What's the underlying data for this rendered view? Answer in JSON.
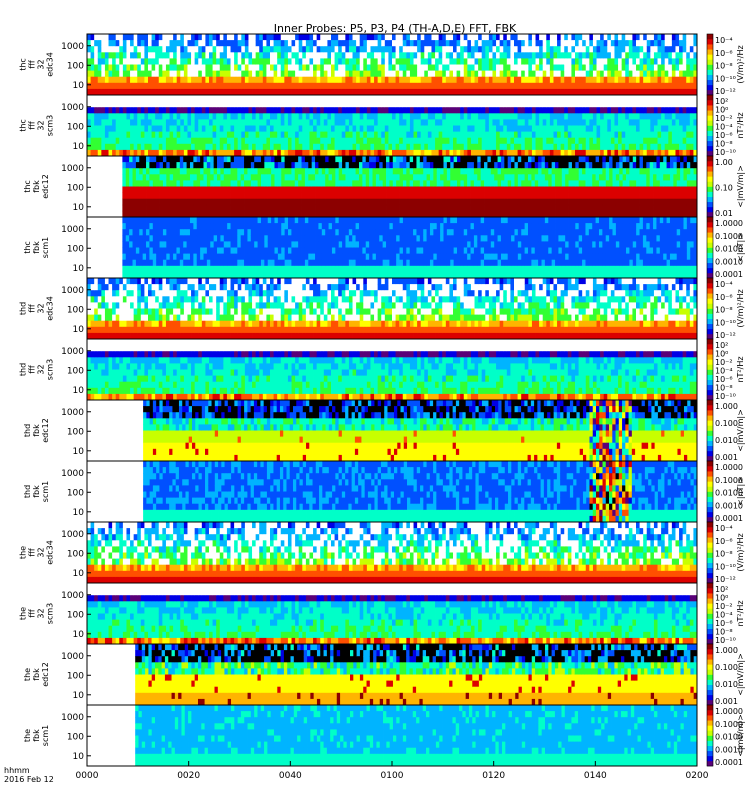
{
  "chart_data": {
    "type": "heatmap",
    "title": "Inner Probes: P5, P3, P4 (TH-A,D,E) FFT, FBK",
    "x_label_line1": "hhmm",
    "x_label_line2": "2016 Feb 12",
    "xticks": [
      "0000",
      "0020",
      "0040",
      "0100",
      "0120",
      "0140",
      "0200"
    ],
    "xlim": [
      "00:00",
      "02:00"
    ],
    "panels": [
      {
        "label": [
          "thc",
          "fff",
          "32",
          "edc34"
        ],
        "kind": "fff_e",
        "yticks": [
          "10",
          "100",
          "1000"
        ],
        "cb_ticks": [
          "10⁻⁴",
          "10⁻⁶",
          "10⁻⁸",
          "10⁻¹⁰",
          "10⁻¹²"
        ],
        "cb_label": "(V/m)²/Hz",
        "data_start": 0.0
      },
      {
        "label": [
          "thc",
          "fff",
          "32",
          "scm3"
        ],
        "kind": "fff_b",
        "yticks": [
          "10",
          "100",
          "1000"
        ],
        "cb_ticks": [
          "10²",
          "10⁰",
          "10⁻²",
          "10⁻⁴",
          "10⁻⁶",
          "10⁻⁸",
          "10⁻¹⁰"
        ],
        "cb_label": "nT²/Hz",
        "data_start": 0.0
      },
      {
        "label": [
          "thc",
          "fbk",
          "edc12"
        ],
        "kind": "fbk_e",
        "yticks": [
          "10",
          "100",
          "1000"
        ],
        "cb_ticks": [
          "1.00",
          "0.10",
          "0.01"
        ],
        "cb_label": "<|mV/m|>",
        "data_start": 0.058
      },
      {
        "label": [
          "thc",
          "fbk",
          "scm1"
        ],
        "kind": "fbk_b",
        "yticks": [
          "10",
          "100",
          "1000"
        ],
        "cb_ticks": [
          "1.0000",
          "0.1000",
          "0.0100",
          "0.0010",
          "0.0001"
        ],
        "cb_label": "<|nT|>",
        "data_start": 0.058
      },
      {
        "label": [
          "thd",
          "fff",
          "32",
          "edc34"
        ],
        "kind": "fff_e",
        "yticks": [
          "10",
          "100",
          "1000"
        ],
        "cb_ticks": [
          "10⁻⁴",
          "10⁻⁶",
          "10⁻⁸",
          "10⁻¹⁰",
          "10⁻¹²"
        ],
        "cb_label": "(V/m)²/Hz",
        "data_start": 0.0
      },
      {
        "label": [
          "thd",
          "fff",
          "32",
          "scm3"
        ],
        "kind": "fff_b",
        "yticks": [
          "10",
          "100",
          "1000"
        ],
        "cb_ticks": [
          "10²",
          "10⁰",
          "10⁻²",
          "10⁻⁴",
          "10⁻⁶",
          "10⁻⁸",
          "10⁻¹⁰"
        ],
        "cb_label": "nT²/Hz",
        "data_start": 0.0
      },
      {
        "label": [
          "thd",
          "fbk",
          "edc12"
        ],
        "kind": "fbk_e_d",
        "yticks": [
          "10",
          "100",
          "1000"
        ],
        "cb_ticks": [
          "1.000",
          "0.100",
          "0.010",
          "0.001"
        ],
        "cb_label": "<|mV/m|>",
        "data_start": 0.092
      },
      {
        "label": [
          "thd",
          "fbk",
          "scm1"
        ],
        "kind": "fbk_b_d",
        "yticks": [
          "10",
          "100",
          "1000"
        ],
        "cb_ticks": [
          "1.0000",
          "0.1000",
          "0.0100",
          "0.0010",
          "0.0001"
        ],
        "cb_label": "<|nT|>",
        "data_start": 0.092
      },
      {
        "label": [
          "the",
          "fff",
          "32",
          "edc34"
        ],
        "kind": "fff_e",
        "yticks": [
          "10",
          "100",
          "1000"
        ],
        "cb_ticks": [
          "10⁻⁴",
          "10⁻⁶",
          "10⁻⁸",
          "10⁻¹⁰",
          "10⁻¹²"
        ],
        "cb_label": "(V/m)²/Hz",
        "data_start": 0.0
      },
      {
        "label": [
          "the",
          "fff",
          "32",
          "scm3"
        ],
        "kind": "fff_b",
        "yticks": [
          "10",
          "100",
          "1000"
        ],
        "cb_ticks": [
          "10²",
          "10⁰",
          "10⁻²",
          "10⁻⁴",
          "10⁻⁶",
          "10⁻⁸",
          "10⁻¹⁰"
        ],
        "cb_label": "nT²/Hz",
        "data_start": 0.0
      },
      {
        "label": [
          "the",
          "fbk",
          "edc12"
        ],
        "kind": "fbk_e_e",
        "yticks": [
          "10",
          "100",
          "1000"
        ],
        "cb_ticks": [
          "1.000",
          "0.100",
          "0.010",
          "0.001"
        ],
        "cb_label": "<|mV/m|>",
        "data_start": 0.079
      },
      {
        "label": [
          "the",
          "fbk",
          "scm1"
        ],
        "kind": "fbk_b_e",
        "yticks": [
          "10",
          "100",
          "1000"
        ],
        "cb_ticks": [
          "1.0000",
          "0.1000",
          "0.0100",
          "0.0010",
          "0.0001"
        ],
        "cb_label": "<|mV/m|>",
        "data_start": 0.079
      }
    ],
    "colormap": [
      "#000000",
      "#5a0078",
      "#0000e6",
      "#0050ff",
      "#00b4ff",
      "#00ffc8",
      "#32ff32",
      "#c8ff00",
      "#ffff00",
      "#ffb400",
      "#ff5000",
      "#dc0000",
      "#8c0000"
    ]
  }
}
